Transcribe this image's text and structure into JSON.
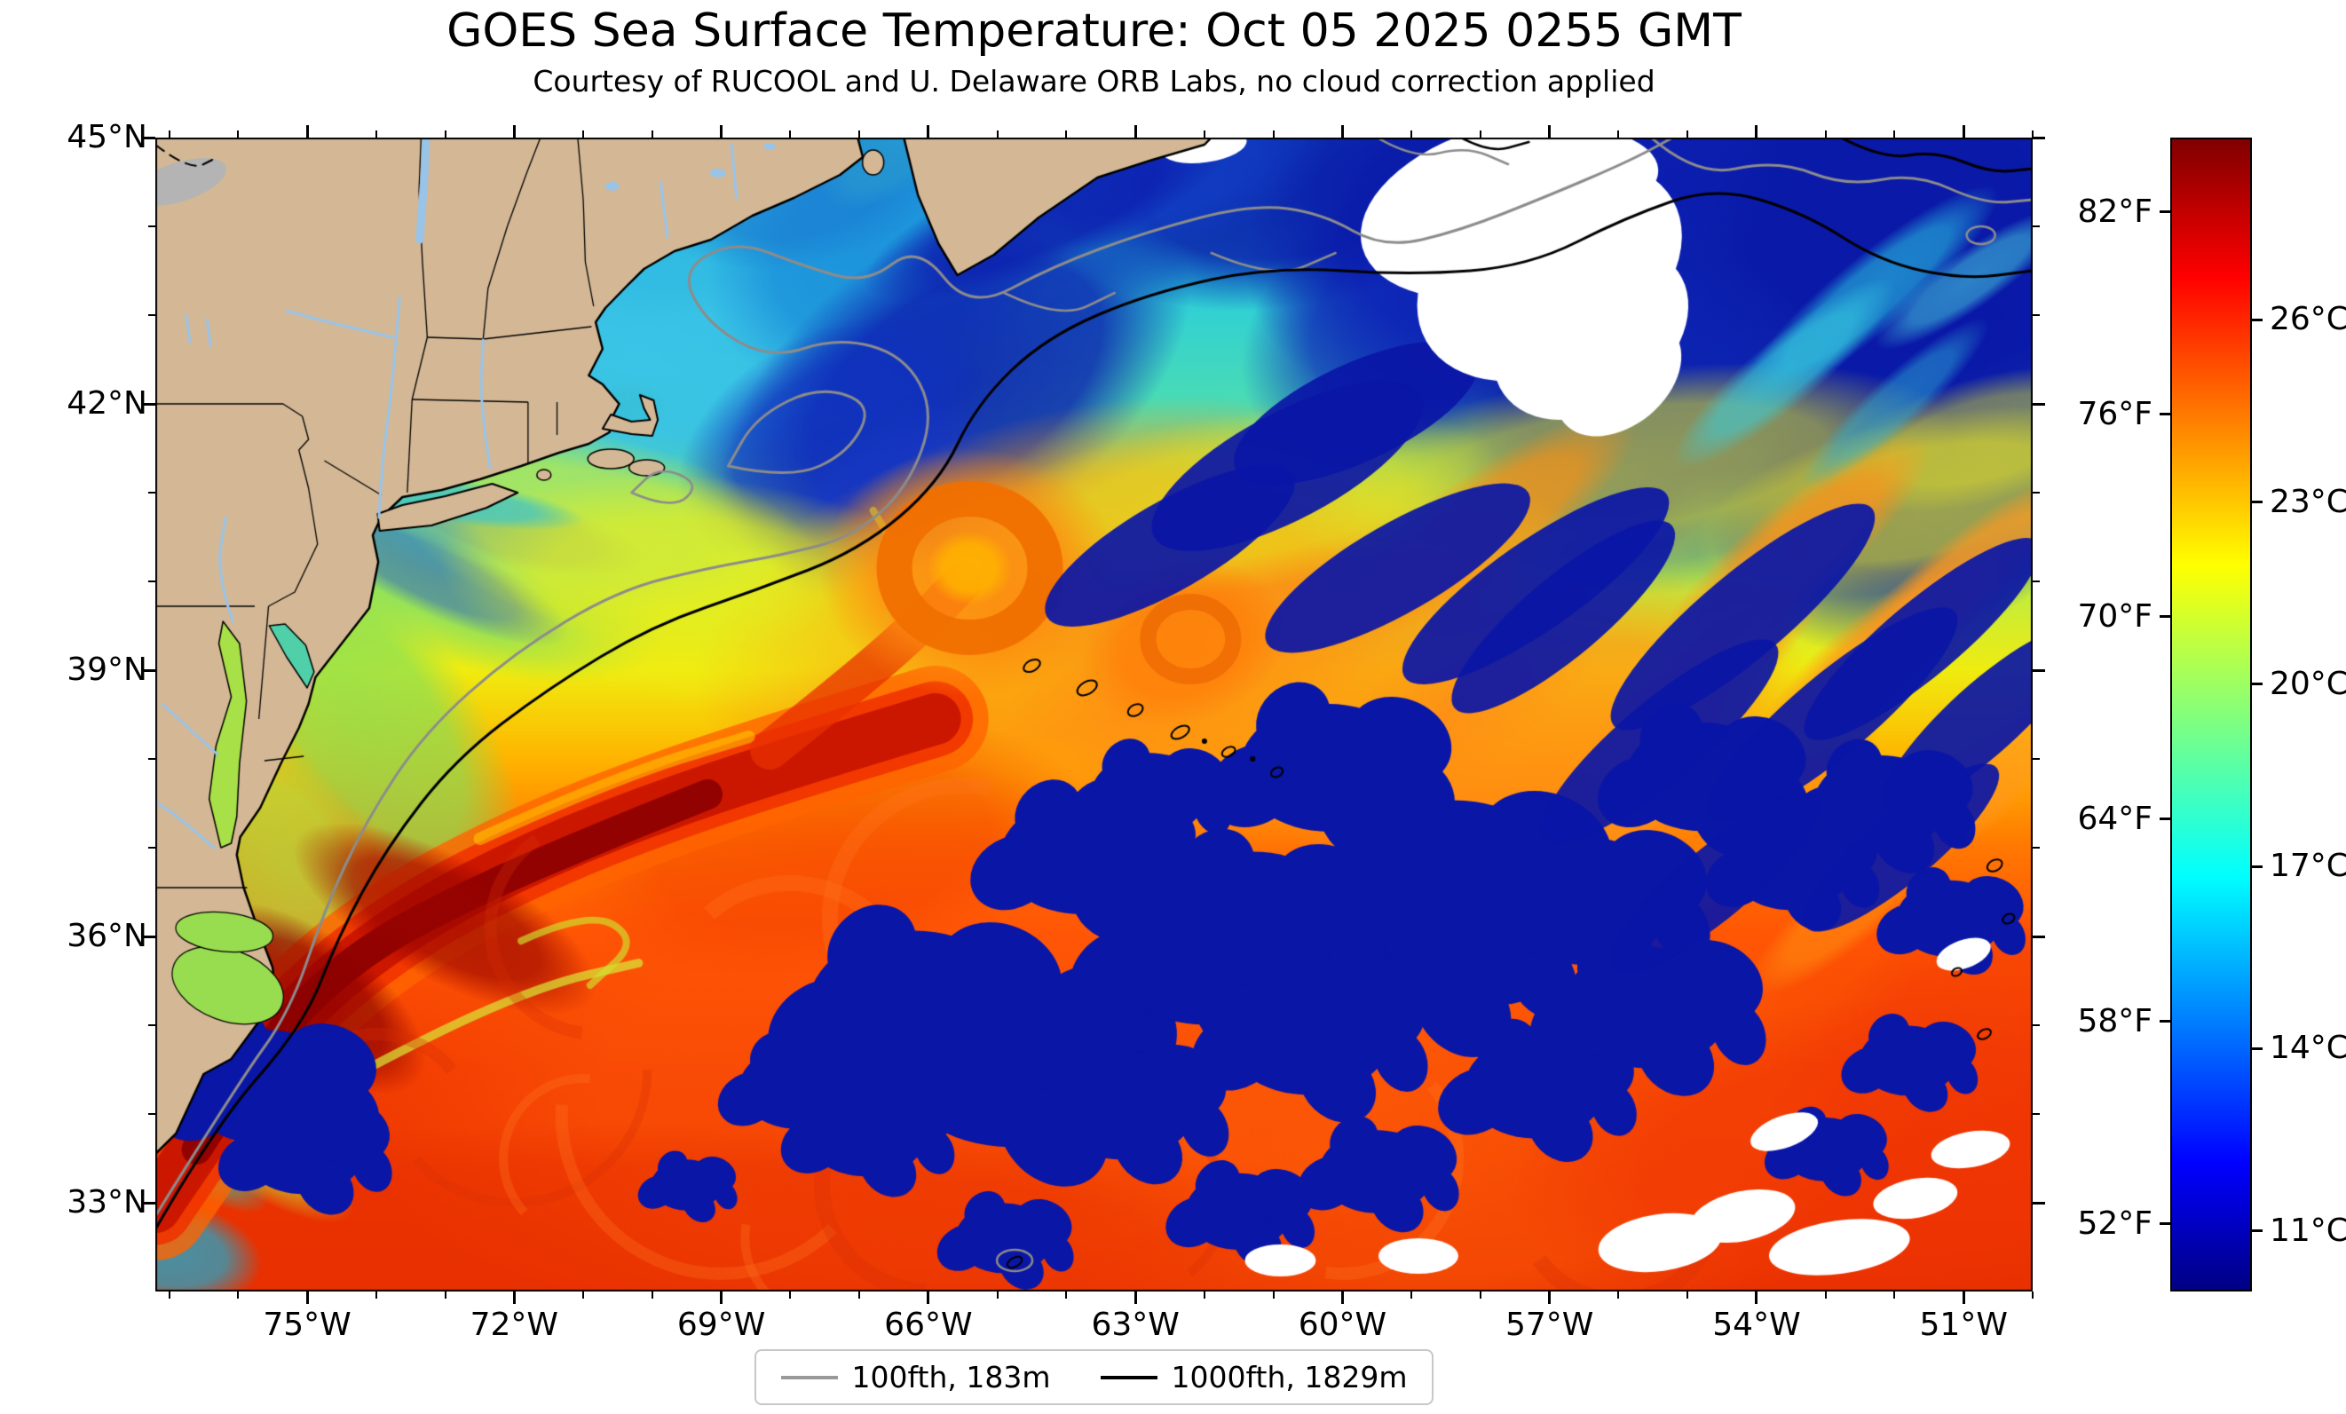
{
  "title": "GOES Sea Surface Temperature: Oct 05 2025 0255 GMT",
  "subtitle": "Courtesy of RUCOOL and U. Delaware ORB Labs, no cloud correction applied",
  "map": {
    "extent": {
      "lon_min": -77.2,
      "lon_max": -50.0,
      "lat_min": 32.0,
      "lat_max": 45.0
    },
    "x_ticks": [
      {
        "lon": -75,
        "label": "75°W"
      },
      {
        "lon": -72,
        "label": "72°W"
      },
      {
        "lon": -69,
        "label": "69°W"
      },
      {
        "lon": -66,
        "label": "66°W"
      },
      {
        "lon": -63,
        "label": "63°W"
      },
      {
        "lon": -60,
        "label": "60°W"
      },
      {
        "lon": -57,
        "label": "57°W"
      },
      {
        "lon": -54,
        "label": "54°W"
      },
      {
        "lon": -51,
        "label": "51°W"
      }
    ],
    "y_ticks": [
      {
        "lat": 45,
        "label": "45°N"
      },
      {
        "lat": 42,
        "label": "42°N"
      },
      {
        "lat": 39,
        "label": "39°N"
      },
      {
        "lat": 36,
        "label": "36°N"
      },
      {
        "lat": 33,
        "label": "33°N"
      }
    ]
  },
  "colorbar": {
    "temp_min_c": 10,
    "temp_max_c": 29,
    "ticks_fahrenheit": [
      {
        "value_f": 82,
        "label": "82°F"
      },
      {
        "value_f": 76,
        "label": "76°F"
      },
      {
        "value_f": 70,
        "label": "70°F"
      },
      {
        "value_f": 64,
        "label": "64°F"
      },
      {
        "value_f": 58,
        "label": "58°F"
      },
      {
        "value_f": 52,
        "label": "52°F"
      }
    ],
    "ticks_celsius": [
      {
        "value_c": 26,
        "label": "26°C"
      },
      {
        "value_c": 23,
        "label": "23°C"
      },
      {
        "value_c": 20,
        "label": "20°C"
      },
      {
        "value_c": 17,
        "label": "17°C"
      },
      {
        "value_c": 14,
        "label": "14°C"
      },
      {
        "value_c": 11,
        "label": "11°C"
      }
    ],
    "colormap_stops": [
      [
        0.0,
        "#000083"
      ],
      [
        0.11,
        "#0000ff"
      ],
      [
        0.36,
        "#00ffff"
      ],
      [
        0.63,
        "#ffff00"
      ],
      [
        0.88,
        "#ff0000"
      ],
      [
        1.0,
        "#800000"
      ]
    ]
  },
  "legend": {
    "items": [
      {
        "label": "100fth, 183m",
        "line_color": "#999999"
      },
      {
        "label": "1000fth, 1829m",
        "line_color": "#000000"
      }
    ]
  },
  "colors": {
    "land": "#d4b896",
    "coastline": "#000000",
    "river": "#99c4e8",
    "contour_100fth": "#8c8c8c",
    "contour_1000fth": "#000000",
    "cloud_nodata": "#ffffff"
  },
  "chart_data": {
    "type": "heatmap",
    "title": "GOES Sea Surface Temperature: Oct 05 2025 0255 GMT",
    "subtitle": "Courtesy of RUCOOL and U. Delaware ORB Labs, no cloud correction applied",
    "variable": "Sea surface temperature",
    "units": [
      "°F",
      "°C"
    ],
    "value_range": {
      "fahrenheit": [
        50,
        84
      ],
      "celsius": [
        10,
        29
      ]
    },
    "colormap": "jet",
    "x_axis": {
      "label": "Longitude",
      "tick_labels": [
        "75°W",
        "72°W",
        "69°W",
        "66°W",
        "63°W",
        "60°W",
        "57°W",
        "54°W",
        "51°W"
      ],
      "range_deg": [
        -77.2,
        -50.0
      ]
    },
    "y_axis": {
      "label": "Latitude",
      "tick_labels": [
        "45°N",
        "42°N",
        "39°N",
        "36°N",
        "33°N"
      ],
      "range_deg": [
        32.0,
        45.0
      ]
    },
    "colorbar_tick_labels_f": [
      "82°F",
      "76°F",
      "70°F",
      "64°F",
      "58°F",
      "52°F"
    ],
    "colorbar_tick_labels_c": [
      "26°C",
      "23°C",
      "20°C",
      "17°C",
      "14°C",
      "11°C"
    ],
    "legend_position": "bottom center",
    "overlays": [
      {
        "name": "100 fathom (183 m) isobath",
        "color": "gray",
        "label": "100fth, 183m"
      },
      {
        "name": "1000 fathom (1829 m) isobath",
        "color": "black",
        "label": "1000fth, 1829m"
      }
    ],
    "features": [
      {
        "name": "Gulf Stream",
        "description": "Dark-red warm core (~80-84°F) running northeast from Cape Hatteras near 75°W 35°N toward 66°W 38.5°N"
      },
      {
        "name": "Warm-core eddy",
        "description": "Orange ring eddy centered near 65.4°W 40.1°N"
      },
      {
        "name": "Gulf of Maine",
        "description": "Cool cyan/blue water (~58-66°F) north of Cape Cod"
      },
      {
        "name": "Northeast cold water",
        "description": "Cold dark-blue water (<55°F) over the northeast quadrant east of 60°W above 41°N"
      },
      {
        "name": "Cloud contamination",
        "description": "Scattered dark-blue cold blobs across the Sargasso Sea (no cloud correction applied)"
      },
      {
        "name": "Cloud mask",
        "description": "Large white no-data cloud mass near 56-58°W 42-44.5°N plus small white patches along the southern edge"
      },
      {
        "name": "Shelf water",
        "description": "Green-yellow (~66-72°F) band along the Mid-Atlantic coast and Chesapeake region"
      },
      {
        "name": "Sargasso Sea",
        "description": "Warm orange-red (~75-80°F) water south of the Gulf Stream"
      },
      {
        "name": "New England Seamounts",
        "description": "Small black depth-contour rings trending southeast near 64-61°W 39-38°N"
      },
      {
        "name": "Bermuda",
        "description": "Small contour ring near 64.7°W 32.3°N"
      }
    ]
  }
}
